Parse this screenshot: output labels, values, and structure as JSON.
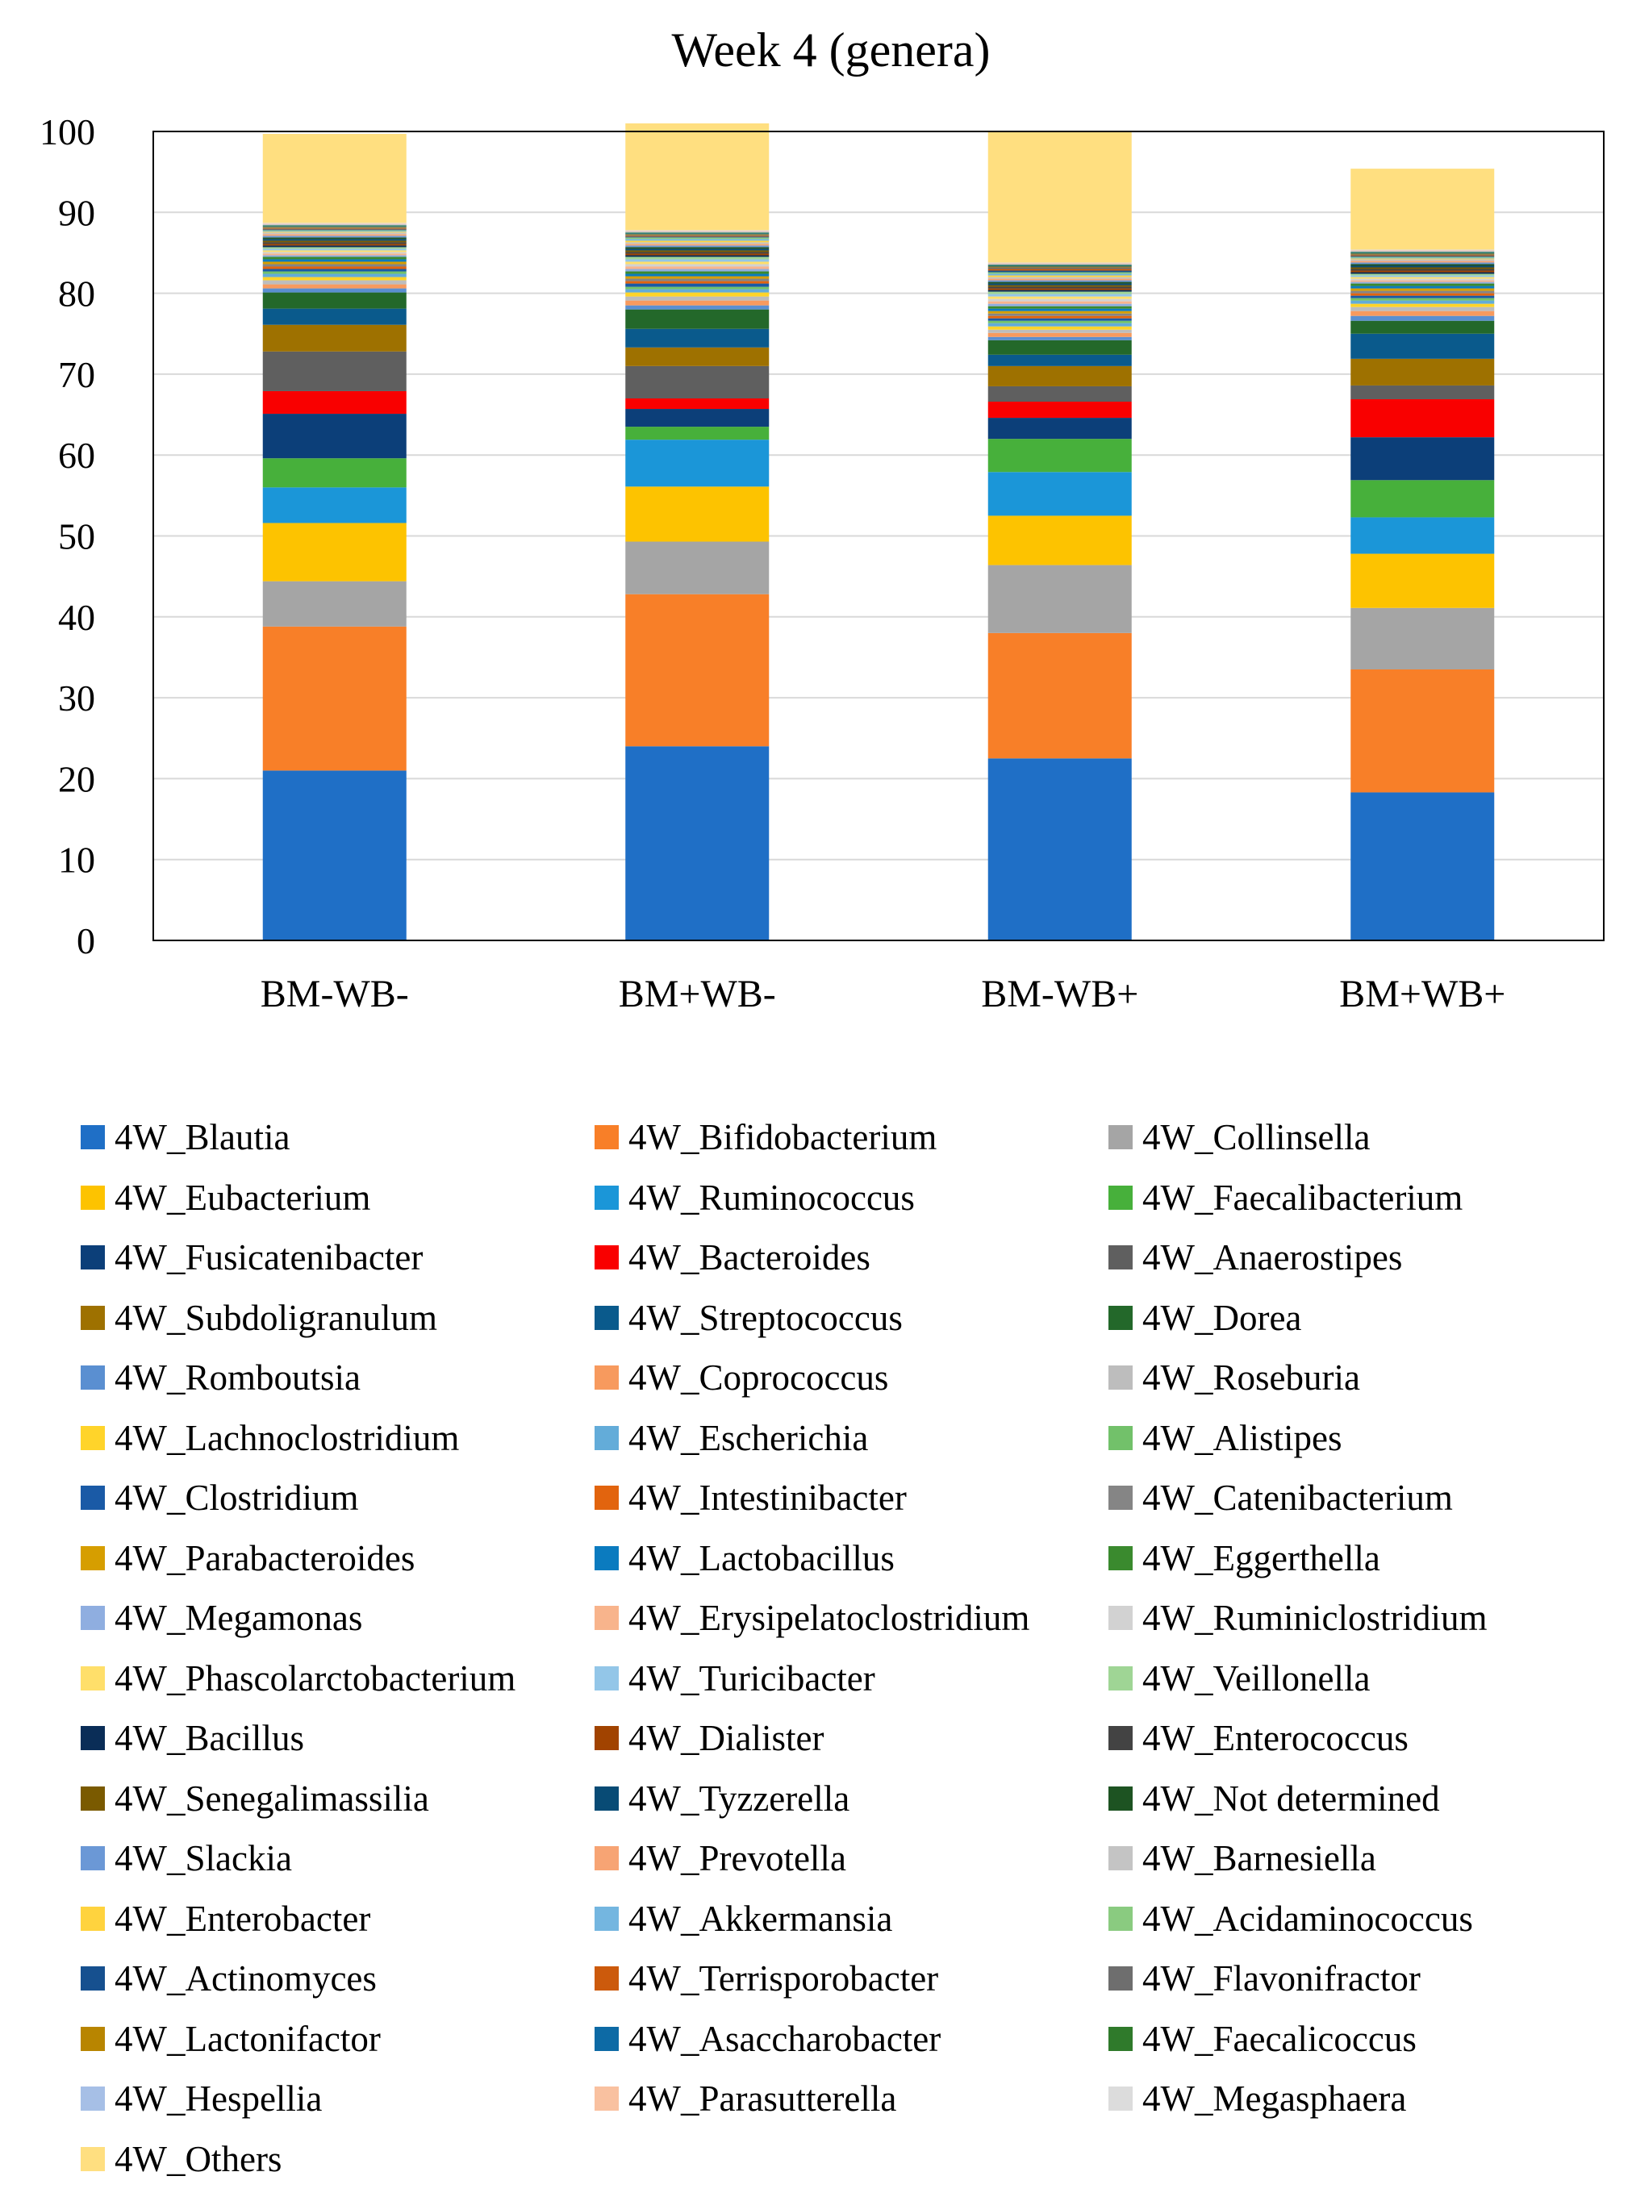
{
  "chart_data": {
    "type": "bar",
    "stacked": true,
    "title": "Week 4 (genera)",
    "xlabel": "",
    "ylabel": "",
    "ylim": [
      0,
      100
    ],
    "yticks": [
      "0",
      "10",
      "20",
      "30",
      "40",
      "50",
      "60",
      "70",
      "80",
      "90",
      "100"
    ],
    "grid": true,
    "legend_position": "bottom",
    "categories": [
      "BM-WB-",
      "BM+WB-",
      "BM-WB+",
      "BM+WB+"
    ],
    "series": [
      {
        "name": "4W_Blautia",
        "color": "#1f6fc6",
        "values": [
          21.0,
          24.0,
          22.5,
          18.3
        ]
      },
      {
        "name": "4W_Bifidobacterium",
        "color": "#f87f28",
        "values": [
          17.8,
          18.8,
          15.5,
          15.2
        ]
      },
      {
        "name": "4W_Collinsella",
        "color": "#a5a5a5",
        "values": [
          5.6,
          6.5,
          8.4,
          7.6
        ]
      },
      {
        "name": "4W_Eubacterium",
        "color": "#fdc300",
        "values": [
          7.2,
          6.8,
          6.1,
          6.7
        ]
      },
      {
        "name": "4W_Ruminococcus",
        "color": "#1b96d8",
        "values": [
          4.4,
          5.8,
          5.4,
          4.5
        ]
      },
      {
        "name": "4W_Faecalibacterium",
        "color": "#47b03b",
        "values": [
          3.6,
          1.6,
          4.1,
          4.6
        ]
      },
      {
        "name": "4W_Fusicatenibacter",
        "color": "#0c3f79",
        "values": [
          5.5,
          2.2,
          2.6,
          5.3
        ]
      },
      {
        "name": "4W_Bacteroides",
        "color": "#f90000",
        "values": [
          2.8,
          1.3,
          2.0,
          4.7
        ]
      },
      {
        "name": "4W_Anaerostipes",
        "color": "#5f5f5f",
        "values": [
          4.9,
          4.0,
          1.9,
          1.7
        ]
      },
      {
        "name": "4W_Subdoligranulum",
        "color": "#9e7100",
        "values": [
          3.3,
          2.3,
          2.5,
          3.3
        ]
      },
      {
        "name": "4W_Streptococcus",
        "color": "#0a5a8c",
        "values": [
          2.0,
          2.3,
          1.4,
          3.1
        ]
      },
      {
        "name": "4W_Dorea",
        "color": "#23682a",
        "values": [
          2.0,
          2.4,
          1.8,
          1.6
        ]
      },
      {
        "name": "4W_Romboutsia",
        "color": "#5a8fd1",
        "values": [
          0.5,
          0.5,
          0.4,
          0.6
        ]
      },
      {
        "name": "4W_Coprococcus",
        "color": "#f79a5e",
        "values": [
          0.5,
          0.6,
          0.5,
          0.6
        ]
      },
      {
        "name": "4W_Roseburia",
        "color": "#bdbdbd",
        "values": [
          0.5,
          0.5,
          0.4,
          0.5
        ]
      },
      {
        "name": "4W_Lachnoclostridium",
        "color": "#ffd42a",
        "values": [
          0.4,
          0.5,
          0.4,
          0.4
        ]
      },
      {
        "name": "4W_Escherichia",
        "color": "#63acd9",
        "values": [
          0.4,
          0.4,
          0.4,
          0.4
        ]
      },
      {
        "name": "4W_Alistipes",
        "color": "#72c16a",
        "values": [
          0.3,
          0.3,
          0.3,
          0.3
        ]
      },
      {
        "name": "4W_Clostridium",
        "color": "#1a5aa6",
        "values": [
          0.3,
          0.4,
          0.3,
          0.3
        ]
      },
      {
        "name": "4W_Intestinibacter",
        "color": "#e2640e",
        "values": [
          0.3,
          0.3,
          0.3,
          0.3
        ]
      },
      {
        "name": "4W_Catenibacterium",
        "color": "#858585",
        "values": [
          0.3,
          0.3,
          0.3,
          0.3
        ]
      },
      {
        "name": "4W_Parabacteroides",
        "color": "#d69e00",
        "values": [
          0.3,
          0.3,
          0.3,
          0.3
        ]
      },
      {
        "name": "4W_Lactobacillus",
        "color": "#0b7bbf",
        "values": [
          0.3,
          0.3,
          0.3,
          0.3
        ]
      },
      {
        "name": "4W_Eggerthella",
        "color": "#3a8a2e",
        "values": [
          0.3,
          0.3,
          0.3,
          0.3
        ]
      },
      {
        "name": "4W_Megamonas",
        "color": "#8faee0",
        "values": [
          0.2,
          0.3,
          0.3,
          0.2
        ]
      },
      {
        "name": "4W_Erysipelatoclostridium",
        "color": "#f8b48c",
        "values": [
          0.2,
          0.3,
          0.3,
          0.2
        ]
      },
      {
        "name": "4W_Ruminiclostridium",
        "color": "#d2d2d2",
        "values": [
          0.2,
          0.3,
          0.3,
          0.2
        ]
      },
      {
        "name": "4W_Phascolarctobacterium",
        "color": "#ffdf6a",
        "values": [
          0.2,
          0.3,
          0.3,
          0.2
        ]
      },
      {
        "name": "4W_Turicibacter",
        "color": "#93c6e8",
        "values": [
          0.2,
          0.3,
          0.3,
          0.2
        ]
      },
      {
        "name": "4W_Veillonella",
        "color": "#9fd595",
        "values": [
          0.2,
          0.3,
          0.3,
          0.2
        ]
      },
      {
        "name": "4W_Bacillus",
        "color": "#0a2d57",
        "values": [
          0.2,
          0.2,
          0.2,
          0.2
        ]
      },
      {
        "name": "4W_Dialister",
        "color": "#a14300",
        "values": [
          0.2,
          0.2,
          0.2,
          0.2
        ]
      },
      {
        "name": "4W_Enterococcus",
        "color": "#434343",
        "values": [
          0.2,
          0.2,
          0.2,
          0.2
        ]
      },
      {
        "name": "4W_Senegalimassilia",
        "color": "#7a5a00",
        "values": [
          0.2,
          0.2,
          0.2,
          0.2
        ]
      },
      {
        "name": "4W_Tyzzerella",
        "color": "#084b75",
        "values": [
          0.2,
          0.2,
          0.2,
          0.2
        ]
      },
      {
        "name": "4W_Not determined",
        "color": "#1d5322",
        "values": [
          0.2,
          0.2,
          0.2,
          0.2
        ]
      },
      {
        "name": "4W_Slackia",
        "color": "#6b98d6",
        "values": [
          0.2,
          0.2,
          0.2,
          0.2
        ]
      },
      {
        "name": "4W_Prevotella",
        "color": "#f7a474",
        "values": [
          0.2,
          0.2,
          0.2,
          0.2
        ]
      },
      {
        "name": "4W_Barnesiella",
        "color": "#c4c4c4",
        "values": [
          0.2,
          0.2,
          0.2,
          0.2
        ]
      },
      {
        "name": "4W_Enterobacter",
        "color": "#ffd33e",
        "values": [
          0.1,
          0.2,
          0.2,
          0.1
        ]
      },
      {
        "name": "4W_Akkermansia",
        "color": "#74b6e0",
        "values": [
          0.1,
          0.2,
          0.2,
          0.1
        ]
      },
      {
        "name": "4W_Acidaminococcus",
        "color": "#8acb80",
        "values": [
          0.1,
          0.2,
          0.2,
          0.1
        ]
      },
      {
        "name": "4W_Actinomyces",
        "color": "#16508f",
        "values": [
          0.1,
          0.1,
          0.2,
          0.1
        ]
      },
      {
        "name": "4W_Terrisporobacter",
        "color": "#cc5a0c",
        "values": [
          0.1,
          0.1,
          0.2,
          0.1
        ]
      },
      {
        "name": "4W_Flavonifractor",
        "color": "#6e6e6e",
        "values": [
          0.1,
          0.1,
          0.2,
          0.1
        ]
      },
      {
        "name": "4W_Lactonifactor",
        "color": "#b88500",
        "values": [
          0.1,
          0.1,
          0.1,
          0.1
        ]
      },
      {
        "name": "4W_Asaccharobacter",
        "color": "#0d6aa5",
        "values": [
          0.1,
          0.1,
          0.1,
          0.1
        ]
      },
      {
        "name": "4W_Faecalicoccus",
        "color": "#2f7a2b",
        "values": [
          0.1,
          0.1,
          0.1,
          0.1
        ]
      },
      {
        "name": "4W_Hespellia",
        "color": "#a6bfe6",
        "values": [
          0.1,
          0.1,
          0.1,
          0.1
        ]
      },
      {
        "name": "4W_Parasutterella",
        "color": "#f9c1a0",
        "values": [
          0.1,
          0.1,
          0.1,
          0.1
        ]
      },
      {
        "name": "4W_Megasphaera",
        "color": "#dcdcdc",
        "values": [
          0.1,
          0.1,
          0.1,
          0.1
        ]
      },
      {
        "name": "4W_Others",
        "color": "#ffdf80",
        "values": [
          11.0,
          13.2,
          16.2,
          10.0
        ]
      }
    ]
  }
}
